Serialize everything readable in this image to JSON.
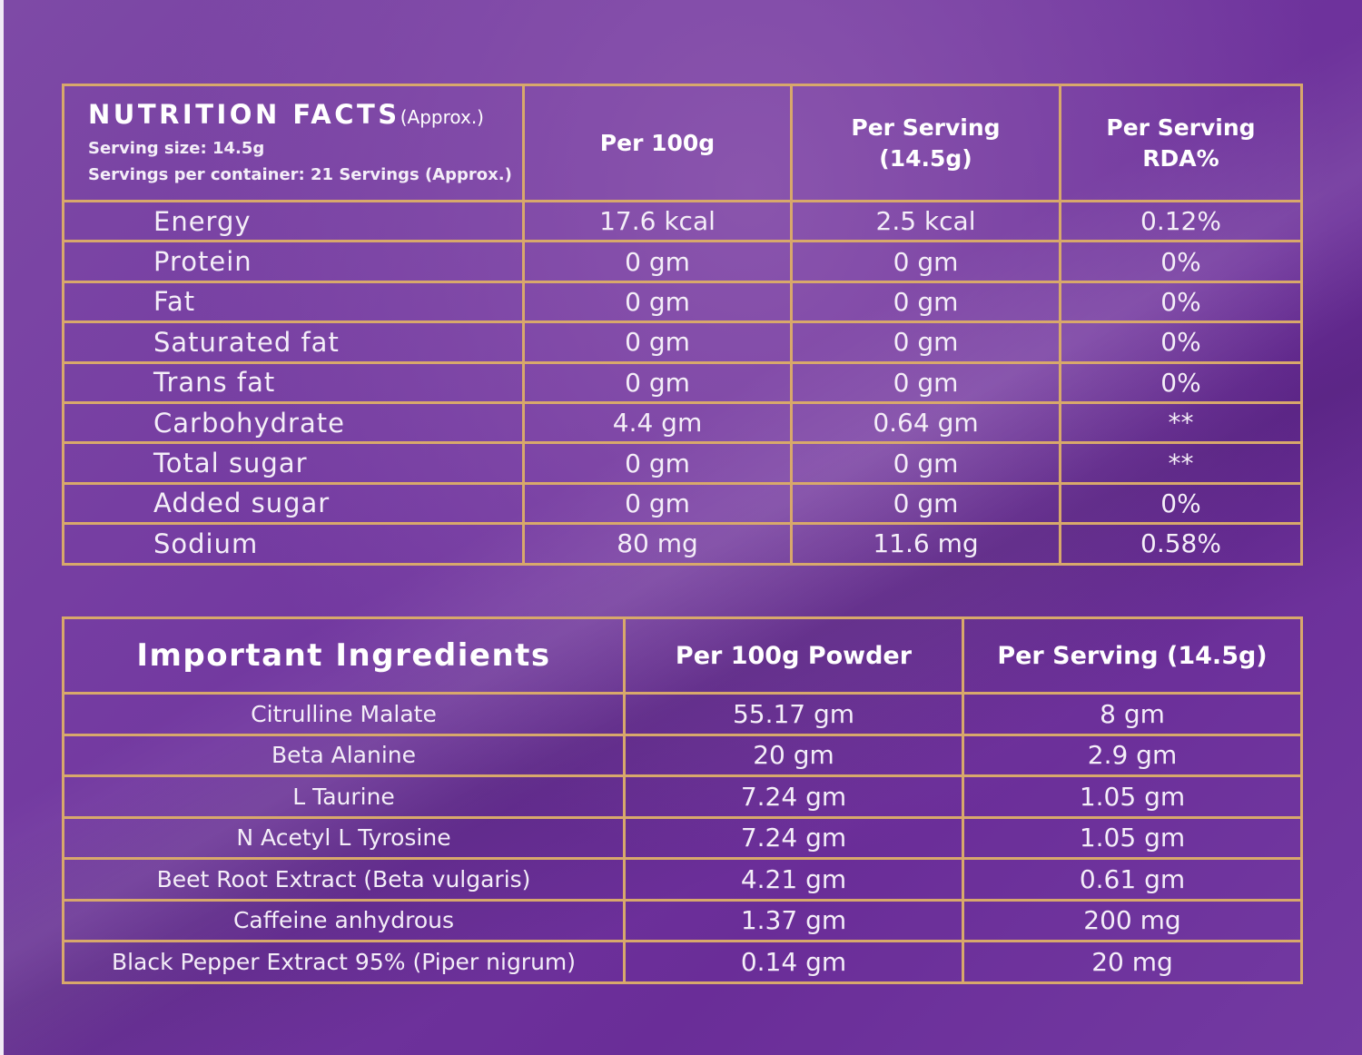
{
  "nutrition": {
    "title": "NUTRITION FACTS",
    "title_note": "(Approx.)",
    "serving_size": "Serving size: 14.5g",
    "servings_per_container": "Servings per container: 21 Servings (Approx.)",
    "columns": [
      "Per 100g",
      "Per Serving (14.5g)",
      "Per Serving RDA%"
    ],
    "rows": [
      {
        "name": "Energy",
        "per_100g": "17.6 kcal",
        "per_serving": "2.5 kcal",
        "rda": "0.12%"
      },
      {
        "name": "Protein",
        "per_100g": "0 gm",
        "per_serving": "0 gm",
        "rda": "0%"
      },
      {
        "name": "Fat",
        "per_100g": "0 gm",
        "per_serving": "0 gm",
        "rda": "0%"
      },
      {
        "name": "Saturated fat",
        "per_100g": "0 gm",
        "per_serving": "0 gm",
        "rda": "0%"
      },
      {
        "name": "Trans fat",
        "per_100g": "0 gm",
        "per_serving": "0 gm",
        "rda": "0%"
      },
      {
        "name": "Carbohydrate",
        "per_100g": "4.4 gm",
        "per_serving": "0.64 gm",
        "rda": "**"
      },
      {
        "name": "Total sugar",
        "per_100g": "0 gm",
        "per_serving": "0 gm",
        "rda": "**"
      },
      {
        "name": "Added sugar",
        "per_100g": "0 gm",
        "per_serving": "0 gm",
        "rda": "0%"
      },
      {
        "name": "Sodium",
        "per_100g": "80 mg",
        "per_serving": "11.6 mg",
        "rda": "0.58%"
      }
    ]
  },
  "ingredients": {
    "title": "Important Ingredients",
    "columns": [
      "Per 100g Powder",
      "Per Serving (14.5g)"
    ],
    "rows": [
      {
        "name": "Citrulline Malate",
        "per_100g": "55.17 gm",
        "per_serving": "8 gm"
      },
      {
        "name": "Beta Alanine",
        "per_100g": "20 gm",
        "per_serving": "2.9 gm"
      },
      {
        "name": "L Taurine",
        "per_100g": "7.24 gm",
        "per_serving": "1.05 gm"
      },
      {
        "name": "N Acetyl L Tyrosine",
        "per_100g": "7.24 gm",
        "per_serving": "1.05 gm"
      },
      {
        "name": "Beet Root Extract (Beta vulgaris)",
        "per_100g": "4.21 gm",
        "per_serving": "0.61 gm"
      },
      {
        "name": "Caffeine anhydrous",
        "per_100g": "1.37 gm",
        "per_serving": "200 mg"
      },
      {
        "name": "Black Pepper Extract 95% (Piper nigrum)",
        "per_100g": "0.14 gm",
        "per_serving": "20 mg"
      }
    ]
  },
  "colors": {
    "background": "#7238a0",
    "border": "#d8a86b",
    "text": "#f4eef8"
  }
}
